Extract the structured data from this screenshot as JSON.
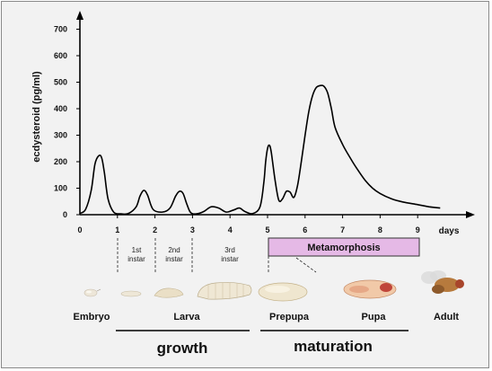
{
  "chart_data": {
    "type": "line",
    "ylabel": "ecdysteroid (pg/ml)",
    "xlabel": "days",
    "xlim": [
      0,
      9.6
    ],
    "ylim": [
      0,
      700
    ],
    "x_ticks": [
      "0",
      "1",
      "2",
      "3",
      "4",
      "5",
      "6",
      "7",
      "8",
      "9"
    ],
    "y_ticks": [
      "0",
      "100",
      "200",
      "300",
      "400",
      "500",
      "600",
      "700"
    ],
    "series": [
      {
        "x": [
          0,
          0.15,
          0.3,
          0.4,
          0.5,
          0.58,
          0.65,
          0.75,
          0.9,
          1.1,
          1.3,
          1.5,
          1.6,
          1.7,
          1.8,
          1.95,
          2.2,
          2.4,
          2.55,
          2.65,
          2.75,
          2.85,
          2.95,
          3.1,
          3.3,
          3.5,
          3.7,
          3.9,
          4.1,
          4.25,
          4.4,
          4.6,
          4.8,
          4.9,
          4.95,
          5.0,
          5.05,
          5.1,
          5.2,
          5.3,
          5.4,
          5.5,
          5.6,
          5.7,
          5.8,
          5.9,
          6.0,
          6.1,
          6.2,
          6.3,
          6.4,
          6.5,
          6.6,
          6.7,
          6.8,
          7.0,
          7.2,
          7.4,
          7.6,
          7.8,
          8.0,
          8.3,
          8.6,
          9.0,
          9.3,
          9.6
        ],
        "y": [
          5,
          20,
          90,
          190,
          222,
          215,
          160,
          60,
          10,
          3,
          5,
          30,
          70,
          92,
          75,
          20,
          10,
          25,
          70,
          88,
          80,
          40,
          8,
          3,
          12,
          30,
          25,
          10,
          18,
          25,
          12,
          4,
          30,
          120,
          200,
          250,
          262,
          235,
          130,
          55,
          60,
          88,
          85,
          65,
          110,
          200,
          300,
          390,
          450,
          480,
          487,
          485,
          460,
          400,
          330,
          265,
          215,
          170,
          130,
          100,
          80,
          60,
          48,
          38,
          30,
          25
        ]
      }
    ],
    "annotations": {
      "instars": [
        "1st\ninstar",
        "2nd\ninstar",
        "3rd\ninstar"
      ],
      "metamorphosis": "Metamorphosis"
    }
  },
  "stages": [
    "Embryo",
    "Larva",
    "Prepupa",
    "Pupa",
    "Adult"
  ],
  "phases": [
    "growth",
    "maturation"
  ],
  "colors": {
    "background": "#f2f2f2",
    "line": "#000000",
    "metamorphosis_fill": "#e5b9e6",
    "metamorphosis_border": "#333333"
  }
}
